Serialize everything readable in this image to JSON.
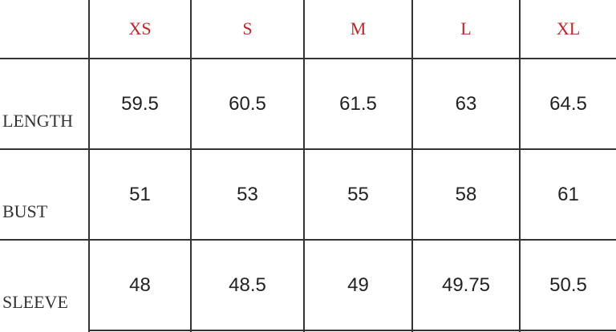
{
  "sizes": [
    "XS",
    "S",
    "M",
    "L",
    "XL"
  ],
  "rows": [
    {
      "label": "LENGTH",
      "values": [
        "59.5",
        "60.5",
        "61.5",
        "63",
        "64.5"
      ]
    },
    {
      "label": "BUST",
      "values": [
        "51",
        "53",
        "55",
        "58",
        "61"
      ]
    },
    {
      "label": "SLEEVE",
      "values": [
        "48",
        "48.5",
        "49",
        "49.75",
        "50.5"
      ]
    }
  ],
  "colors": {
    "header": "#b8262a",
    "text": "#222222",
    "border": "#333333"
  }
}
